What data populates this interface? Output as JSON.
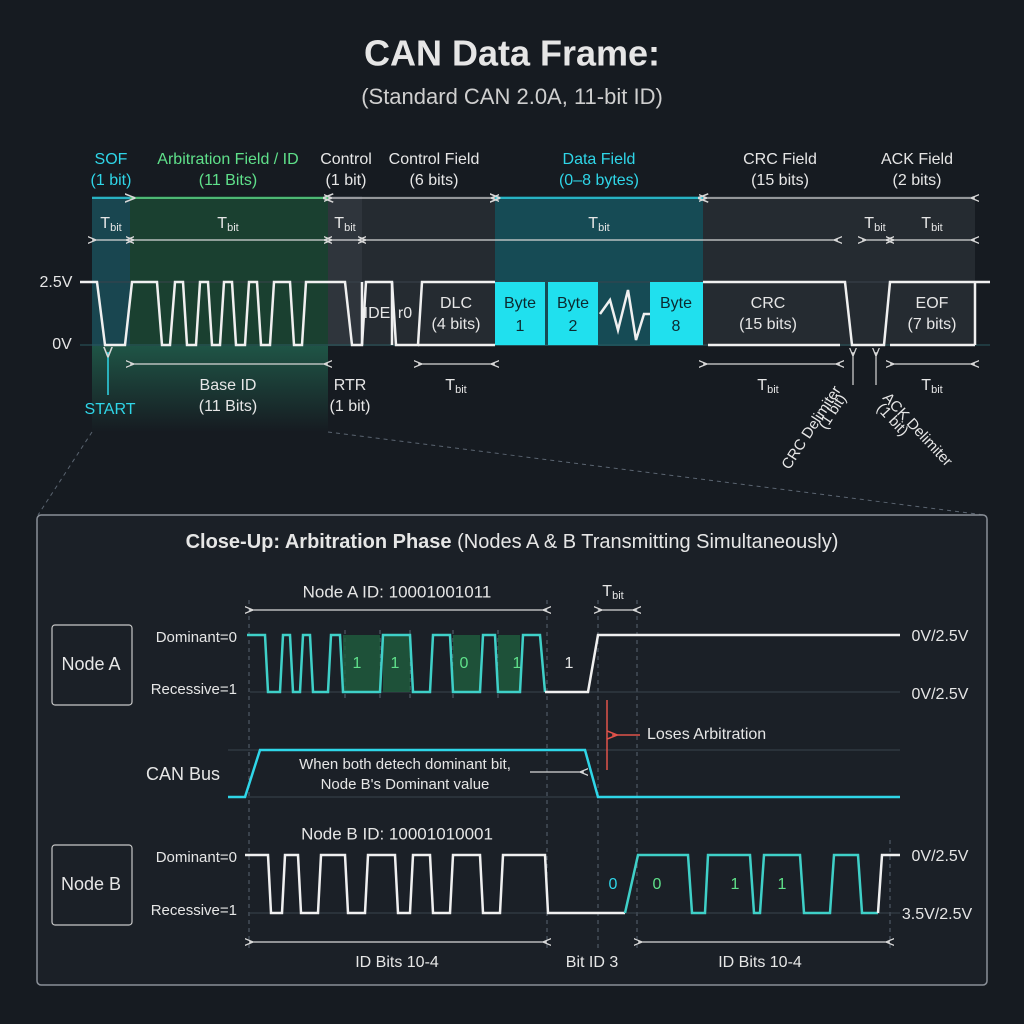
{
  "header": {
    "title": "CAN Data Frame:",
    "subtitle": "(Standard CAN 2.0A, 11-bit ID)"
  },
  "tbit": {
    "symbol": "T",
    "subscript": "bit"
  },
  "frame": {
    "fields": [
      {
        "name": "SOF",
        "size": "(1 bit)"
      },
      {
        "name": "Arbitration Field / ID",
        "size": "(11 Bits)"
      },
      {
        "name": "Control",
        "size": "(1 bit)"
      },
      {
        "name": "Control Field",
        "size": "(6 bits)"
      },
      {
        "name": "Data Field",
        "size": "(0–8 bytes)"
      },
      {
        "name": "CRC Field",
        "size": "(15 bits)"
      },
      {
        "name": "ACK Field",
        "size": "(2 bits)"
      }
    ],
    "levels": {
      "high": "2.5V",
      "low": "0V"
    },
    "segments": [
      {
        "lines": [
          "IDE"
        ]
      },
      {
        "lines": [
          "r0"
        ]
      },
      {
        "lines": [
          "DLC",
          "(4 bits)"
        ]
      },
      {
        "lines": [
          "Byte",
          "1"
        ]
      },
      {
        "lines": [
          "Byte",
          "2"
        ]
      },
      {
        "lines": [
          "Byte",
          "8"
        ]
      },
      {
        "lines": [
          "CRC",
          "(15 bits)"
        ]
      },
      {
        "lines": [
          "EOF",
          "(7 bits)"
        ]
      }
    ],
    "below": [
      {
        "lines": [
          "START"
        ]
      },
      {
        "lines": [
          "Base ID",
          "(11 Bits)"
        ]
      },
      {
        "lines": [
          "RTR",
          "(1 bit)"
        ]
      },
      {
        "lines": [
          "CRC Delimiter",
          "(1 bit)"
        ]
      },
      {
        "lines": [
          "ACK Delimiter",
          "(1 bit)"
        ]
      }
    ]
  },
  "closeup": {
    "title": {
      "bold": "Close-Up: Arbitration Phase",
      "rest": "(Nodes A & B Transmitting Simultaneously)"
    },
    "node_a": {
      "name": "Node A",
      "dominant": "Dominant=0",
      "recessive": "Recessive=1",
      "id_label": "Node A ID: 10001001011",
      "bits": [
        "1",
        "1",
        "0",
        "1",
        "1"
      ],
      "level_top": "0V/2.5V",
      "level_bottom": "0V/2.5V"
    },
    "bus": {
      "name": "CAN Bus",
      "note": [
        "When both detech dominant bit,",
        "Node B's Dominant value"
      ],
      "loses": "Loses Arbitration"
    },
    "node_b": {
      "name": "Node B",
      "dominant": "Dominant=0",
      "recessive": "Recessive=1",
      "id_label": "Node B ID: 10001010001",
      "bits": [
        "0",
        "0",
        "1",
        "1"
      ],
      "level_top": "0V/2.5V",
      "level_bottom": "3.5V/2.5V"
    },
    "bottom": [
      "ID Bits 10-4",
      "Bit ID 3",
      "ID Bits 10-4"
    ]
  }
}
